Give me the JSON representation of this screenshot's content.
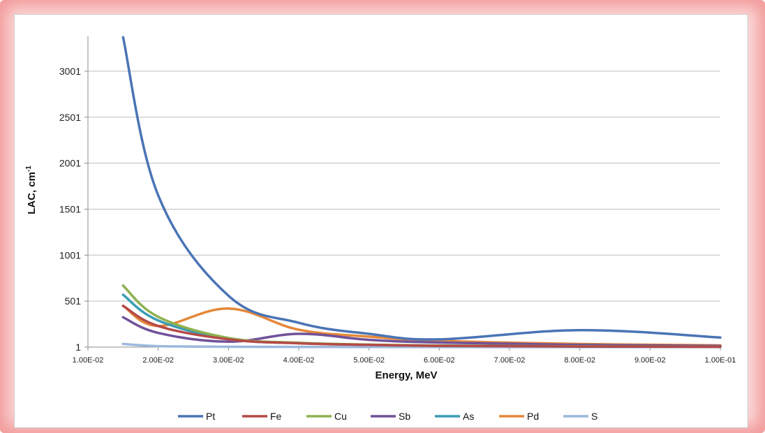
{
  "chart_data": {
    "type": "line",
    "title": "",
    "xlabel": "Energy, MeV",
    "ylabel_main": "LAC, cm",
    "ylabel_sup": "-1",
    "xlim": [
      0.01,
      0.1
    ],
    "ylim": [
      1,
      3380
    ],
    "x_ticks": [
      "1.00E-02",
      "2.00E-02",
      "3.00E-02",
      "4.00E-02",
      "5.00E-02",
      "6.00E-02",
      "7.00E-02",
      "8.00E-02",
      "9.00E-02",
      "1.00E-01"
    ],
    "y_ticks": [
      "1",
      "501",
      "1001",
      "1501",
      "2001",
      "2501",
      "3001"
    ],
    "grid": true,
    "legend_position": "bottom",
    "x": [
      0.015,
      0.02,
      0.03,
      0.04,
      0.05,
      0.06,
      0.08,
      0.1
    ],
    "series": [
      {
        "name": "Pt",
        "color": "#4a74b5",
        "values": [
          3370,
          1650,
          560,
          265,
          145,
          85,
          185,
          105
        ]
      },
      {
        "name": "Fe",
        "color": "#b44a47",
        "values": [
          450,
          230,
          85,
          42,
          25,
          15,
          8,
          5
        ]
      },
      {
        "name": "Cu",
        "color": "#8eb14e",
        "values": [
          670,
          330,
          100,
          48,
          28,
          18,
          10,
          6
        ]
      },
      {
        "name": "Sb",
        "color": "#70519a",
        "values": [
          325,
          155,
          60,
          145,
          80,
          50,
          25,
          15
        ]
      },
      {
        "name": "As",
        "color": "#3b9cb3",
        "values": [
          570,
          290,
          90,
          45,
          26,
          17,
          9,
          6
        ]
      },
      {
        "name": "Pd",
        "color": "#e4883a",
        "values": [
          450,
          230,
          420,
          190,
          115,
          70,
          35,
          20
        ]
      },
      {
        "name": "S",
        "color": "#9db8dc",
        "values": [
          35,
          12,
          5,
          3,
          2,
          1.5,
          1.2,
          1.1
        ]
      }
    ]
  }
}
